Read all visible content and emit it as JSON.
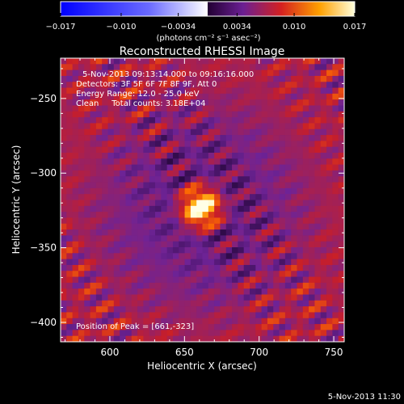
{
  "chart_data": {
    "type": "heatmap",
    "title": "Reconstructed RHESSI Image",
    "xlabel": "Heliocentric X (arcsec)",
    "ylabel": "Heliocentric Y (arcsec)",
    "xlim": [
      567,
      757
    ],
    "ylim": [
      -413,
      -223
    ],
    "xticks": [
      600,
      650,
      700,
      750
    ],
    "yticks": [
      -250,
      -300,
      -350,
      -400
    ],
    "colorbar": {
      "min": -0.017,
      "max": 0.017,
      "ticks": [
        "-0.017",
        "-0.010",
        "-0.0034",
        "0.0034",
        "0.010",
        "0.017"
      ],
      "unit_label": "(photons cm⁻² s⁻¹ asec⁻²)"
    },
    "peak": {
      "x": 661,
      "y": -323
    },
    "stripe_angle_deg": -58,
    "stripe_period_arcsec": 15,
    "colormap": "fire"
  },
  "annotations": {
    "time_range": "5-Nov-2013 09:13:14.000 to 09:16:16.000",
    "detectors": "Detectors: 3F 5F 6F 7F 8F 9F, Att 0",
    "energy": "Energy Range: 12.0 - 25.0 keV",
    "clean": "Clean     Total counts: 3.18E+04",
    "peak_position": "Position of Peak = [661,-323]"
  },
  "footer": {
    "timestamp": "5-Nov-2013 11:30"
  }
}
